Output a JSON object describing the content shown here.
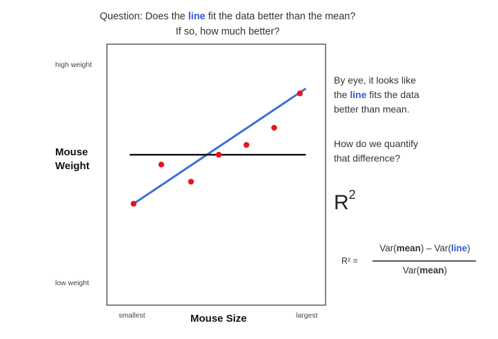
{
  "header": {
    "question_prefix": "Question:  Does the ",
    "question_line_word": "line",
    "question_suffix": " fit the data better than the mean?",
    "question_line2": "If so, how much better?"
  },
  "chart_data": {
    "type": "scatter",
    "xlabel": "Mouse Size",
    "ylabel": "Mouse Weight",
    "x_tick_labels": [
      "smallest",
      "largest"
    ],
    "y_tick_labels": [
      "high weight",
      "low weight"
    ],
    "xlim": [
      0,
      100
    ],
    "ylim": [
      0,
      100
    ],
    "grid": false,
    "points": [
      {
        "x": 10,
        "y": 38
      },
      {
        "x": 24,
        "y": 54
      },
      {
        "x": 39,
        "y": 47
      },
      {
        "x": 53,
        "y": 58
      },
      {
        "x": 67,
        "y": 62
      },
      {
        "x": 81,
        "y": 69
      },
      {
        "x": 94,
        "y": 83
      }
    ],
    "lines": [
      {
        "label": "line",
        "color": "#3a6fd8",
        "x": [
          10,
          97
        ],
        "y": [
          38,
          85
        ]
      },
      {
        "label": "mean",
        "color": "#111111",
        "x": [
          8,
          97
        ],
        "y": [
          58,
          58
        ]
      }
    ],
    "point_color": "#e8141c"
  },
  "notes": {
    "eye_1": "By eye, it looks like",
    "eye_2_prefix": "the ",
    "eye_2_line": "line",
    "eye_2_suffix": " fits the data",
    "eye_3": "better than mean.",
    "quantify_1": "How do we quantify",
    "quantify_2": "that difference?"
  },
  "r2": {
    "label_base": "R",
    "label_exp": "2"
  },
  "formula": {
    "lhs": "R² =",
    "num_var1": "Var(",
    "num_mean": "mean",
    "num_mid": ") – Var(",
    "num_line": "line",
    "num_end": ")",
    "den_var": "Var(",
    "den_mean": "mean",
    "den_end": ")"
  }
}
